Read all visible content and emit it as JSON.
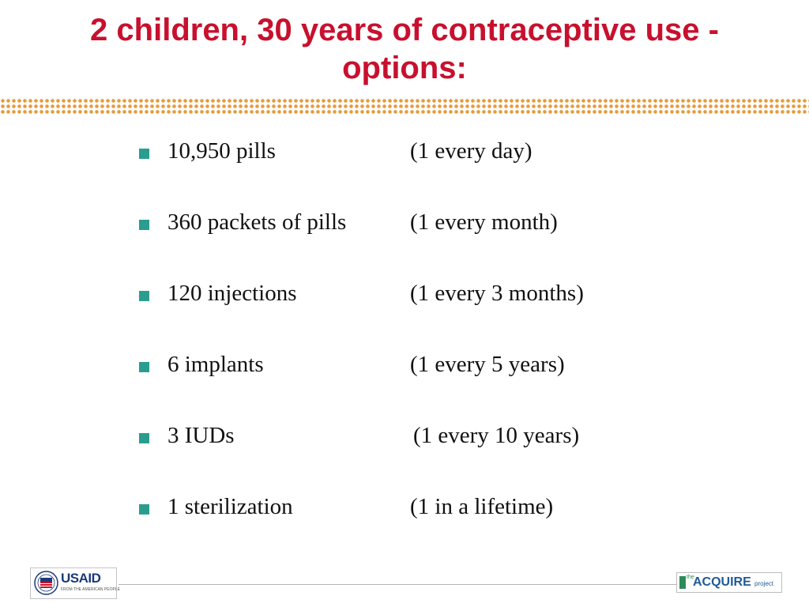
{
  "slide": {
    "title": "2 children, 30 years of contraceptive use - options:",
    "items": [
      {
        "name": "10,950 pills",
        "frequency": "(1 every day)"
      },
      {
        "name": "360 packets of pills",
        "frequency": "(1 every month)"
      },
      {
        "name": "120 injections",
        "frequency": "(1 every 3 months)"
      },
      {
        "name": "6 implants",
        "frequency": "(1 every 5 years)"
      },
      {
        "name": "3 IUDs",
        "frequency": "(1 every 10 years)"
      },
      {
        "name": "1 sterilization",
        "frequency": "(1 in a lifetime)"
      }
    ]
  },
  "footer": {
    "usaid_logo": {
      "name": "USAID",
      "tagline": "FROM THE AMERICAN PEOPLE"
    },
    "acquire_logo": {
      "prefix": "the",
      "name": "ACQUIRE",
      "suffix": "project"
    }
  },
  "colors": {
    "title": "#c8102e",
    "bullet": "#2a9d8f",
    "dots": "#e89a3c"
  }
}
